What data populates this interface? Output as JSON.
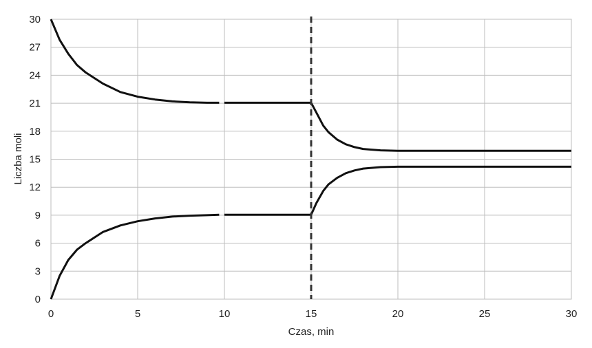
{
  "chart_data": {
    "type": "line",
    "xlabel": "Czas, min",
    "ylabel": "Liczba moli",
    "xlim": [
      0,
      30
    ],
    "ylim": [
      0,
      30
    ],
    "x_ticks": [
      "0",
      "5",
      "10",
      "15",
      "20",
      "25",
      "30"
    ],
    "y_ticks": [
      "0",
      "3",
      "6",
      "9",
      "12",
      "15",
      "18",
      "21",
      "24",
      "27",
      "30"
    ],
    "grid": true,
    "legend": "none",
    "vertical_marker_x": 15,
    "series": [
      {
        "points": [
          [
            0,
            30
          ],
          [
            0.5,
            27.8
          ],
          [
            1,
            26.3
          ],
          [
            1.5,
            25.1
          ],
          [
            2,
            24.3
          ],
          [
            3,
            23.1
          ],
          [
            4,
            22.2
          ],
          [
            5,
            21.7
          ],
          [
            6,
            21.4
          ],
          [
            7,
            21.2
          ],
          [
            8,
            21.1
          ],
          [
            9,
            21.05
          ],
          [
            9.7,
            21.05
          ]
        ],
        "color": "#111111"
      },
      {
        "points": [
          [
            10,
            21.05
          ],
          [
            15,
            21.05
          ]
        ],
        "color": "#111111"
      },
      {
        "points": [
          [
            15,
            21.05
          ],
          [
            15.3,
            20
          ],
          [
            15.7,
            18.6
          ],
          [
            16,
            17.9
          ],
          [
            16.5,
            17.1
          ],
          [
            17,
            16.6
          ],
          [
            17.5,
            16.3
          ],
          [
            18,
            16.1
          ],
          [
            19,
            15.95
          ],
          [
            20,
            15.9
          ],
          [
            25,
            15.9
          ],
          [
            30,
            15.9
          ]
        ],
        "color": "#111111"
      },
      {
        "points": [
          [
            0,
            0
          ],
          [
            0.5,
            2.5
          ],
          [
            1,
            4.2
          ],
          [
            1.5,
            5.3
          ],
          [
            2,
            6
          ],
          [
            3,
            7.2
          ],
          [
            4,
            7.9
          ],
          [
            5,
            8.35
          ],
          [
            6,
            8.65
          ],
          [
            7,
            8.85
          ],
          [
            8,
            8.95
          ],
          [
            9,
            9
          ],
          [
            9.7,
            9.05
          ]
        ],
        "color": "#111111"
      },
      {
        "points": [
          [
            10,
            9.05
          ],
          [
            15,
            9.05
          ]
        ],
        "color": "#111111"
      },
      {
        "points": [
          [
            15,
            9.05
          ],
          [
            15.3,
            10.3
          ],
          [
            15.7,
            11.6
          ],
          [
            16,
            12.3
          ],
          [
            16.5,
            13
          ],
          [
            17,
            13.5
          ],
          [
            17.5,
            13.8
          ],
          [
            18,
            14
          ],
          [
            19,
            14.15
          ],
          [
            20,
            14.2
          ],
          [
            25,
            14.2
          ],
          [
            30,
            14.2
          ]
        ],
        "color": "#111111"
      }
    ]
  }
}
